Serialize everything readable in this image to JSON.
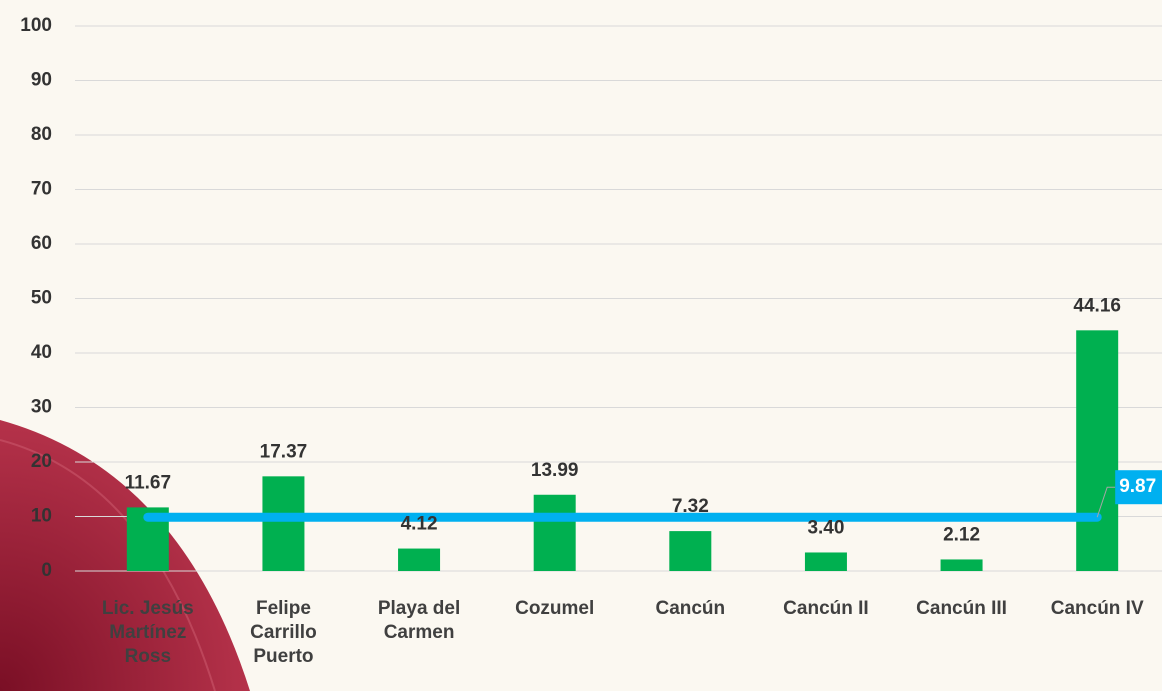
{
  "chart_data": {
    "type": "bar",
    "categories": [
      "Lic. Jesús Martínez Ross",
      "Felipe Carrillo Puerto",
      "Playa del Carmen",
      "Cozumel",
      "Cancún",
      "Cancún II",
      "Cancún III",
      "Cancún IV"
    ],
    "values": [
      11.67,
      17.37,
      4.12,
      13.99,
      7.32,
      3.4,
      2.12,
      44.16
    ],
    "value_labels": [
      "11.67",
      "17.37",
      "4.12",
      "13.99",
      "7.32",
      "3.40",
      "2.12",
      "44.16"
    ],
    "color": "#00b050",
    "reference_line": {
      "value": 9.87,
      "color": "#00b0f0"
    },
    "ylim": [
      0,
      100
    ],
    "yticks": [
      0,
      10,
      20,
      30,
      40,
      50,
      60,
      70,
      80,
      90,
      100
    ],
    "grid": true
  }
}
